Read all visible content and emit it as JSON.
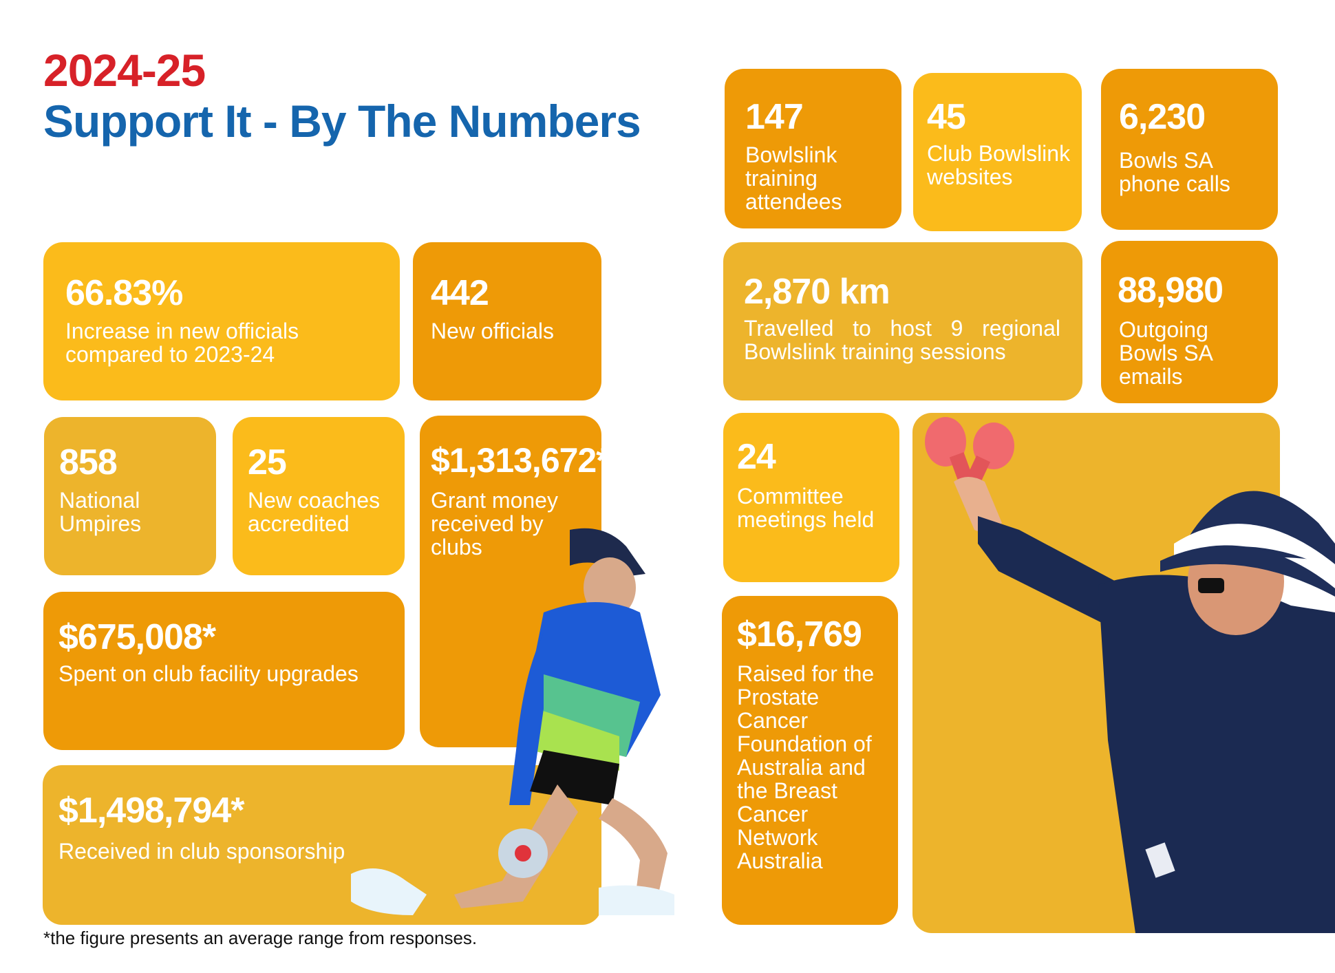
{
  "header": {
    "year": "2024-25",
    "title": "Support It - By The Numbers"
  },
  "stats": {
    "increase_officials": {
      "value": "66.83%",
      "label": "Increase in new officials compared to 2023-24"
    },
    "new_officials": {
      "value": "442",
      "label": "New officials"
    },
    "national_umpires": {
      "value": "858",
      "label": "National Umpires"
    },
    "new_coaches": {
      "value": "25",
      "label": "New coaches accredited"
    },
    "grant_money": {
      "value": "$1,313,672*",
      "label": "Grant money received by clubs"
    },
    "facility_upgrades": {
      "value": "$675,008*",
      "label": "Spent on club facility upgrades"
    },
    "sponsorship": {
      "value": "$1,498,794*",
      "label": "Received in club sponsorship"
    },
    "training_attendees": {
      "value": "147",
      "label": "Bowlslink training attendees"
    },
    "club_websites": {
      "value": "45",
      "label": "Club Bowlslink websites"
    },
    "phone_calls": {
      "value": "6,230",
      "label": "Bowls SA phone calls"
    },
    "km_travelled": {
      "value": "2,870 km",
      "label": "Travelled to host 9 regional Bowlslink training sessions"
    },
    "outgoing_emails": {
      "value": "88,980",
      "label": "Outgoing Bowls SA emails"
    },
    "committee_meetings": {
      "value": "24",
      "label": "Committee meetings held"
    },
    "raised_cancer": {
      "value": "$16,769",
      "label": "Raised for the Prostate Cancer Foundation of Australia and the Breast Cancer Network Australia"
    }
  },
  "footnote": "*the figure presents an average range from responses.",
  "colors": {
    "year": "#d72128",
    "title": "#1565ad",
    "gold": "#edb42c",
    "yellow": "#fbbb1b",
    "orange": "#ee9a07"
  }
}
